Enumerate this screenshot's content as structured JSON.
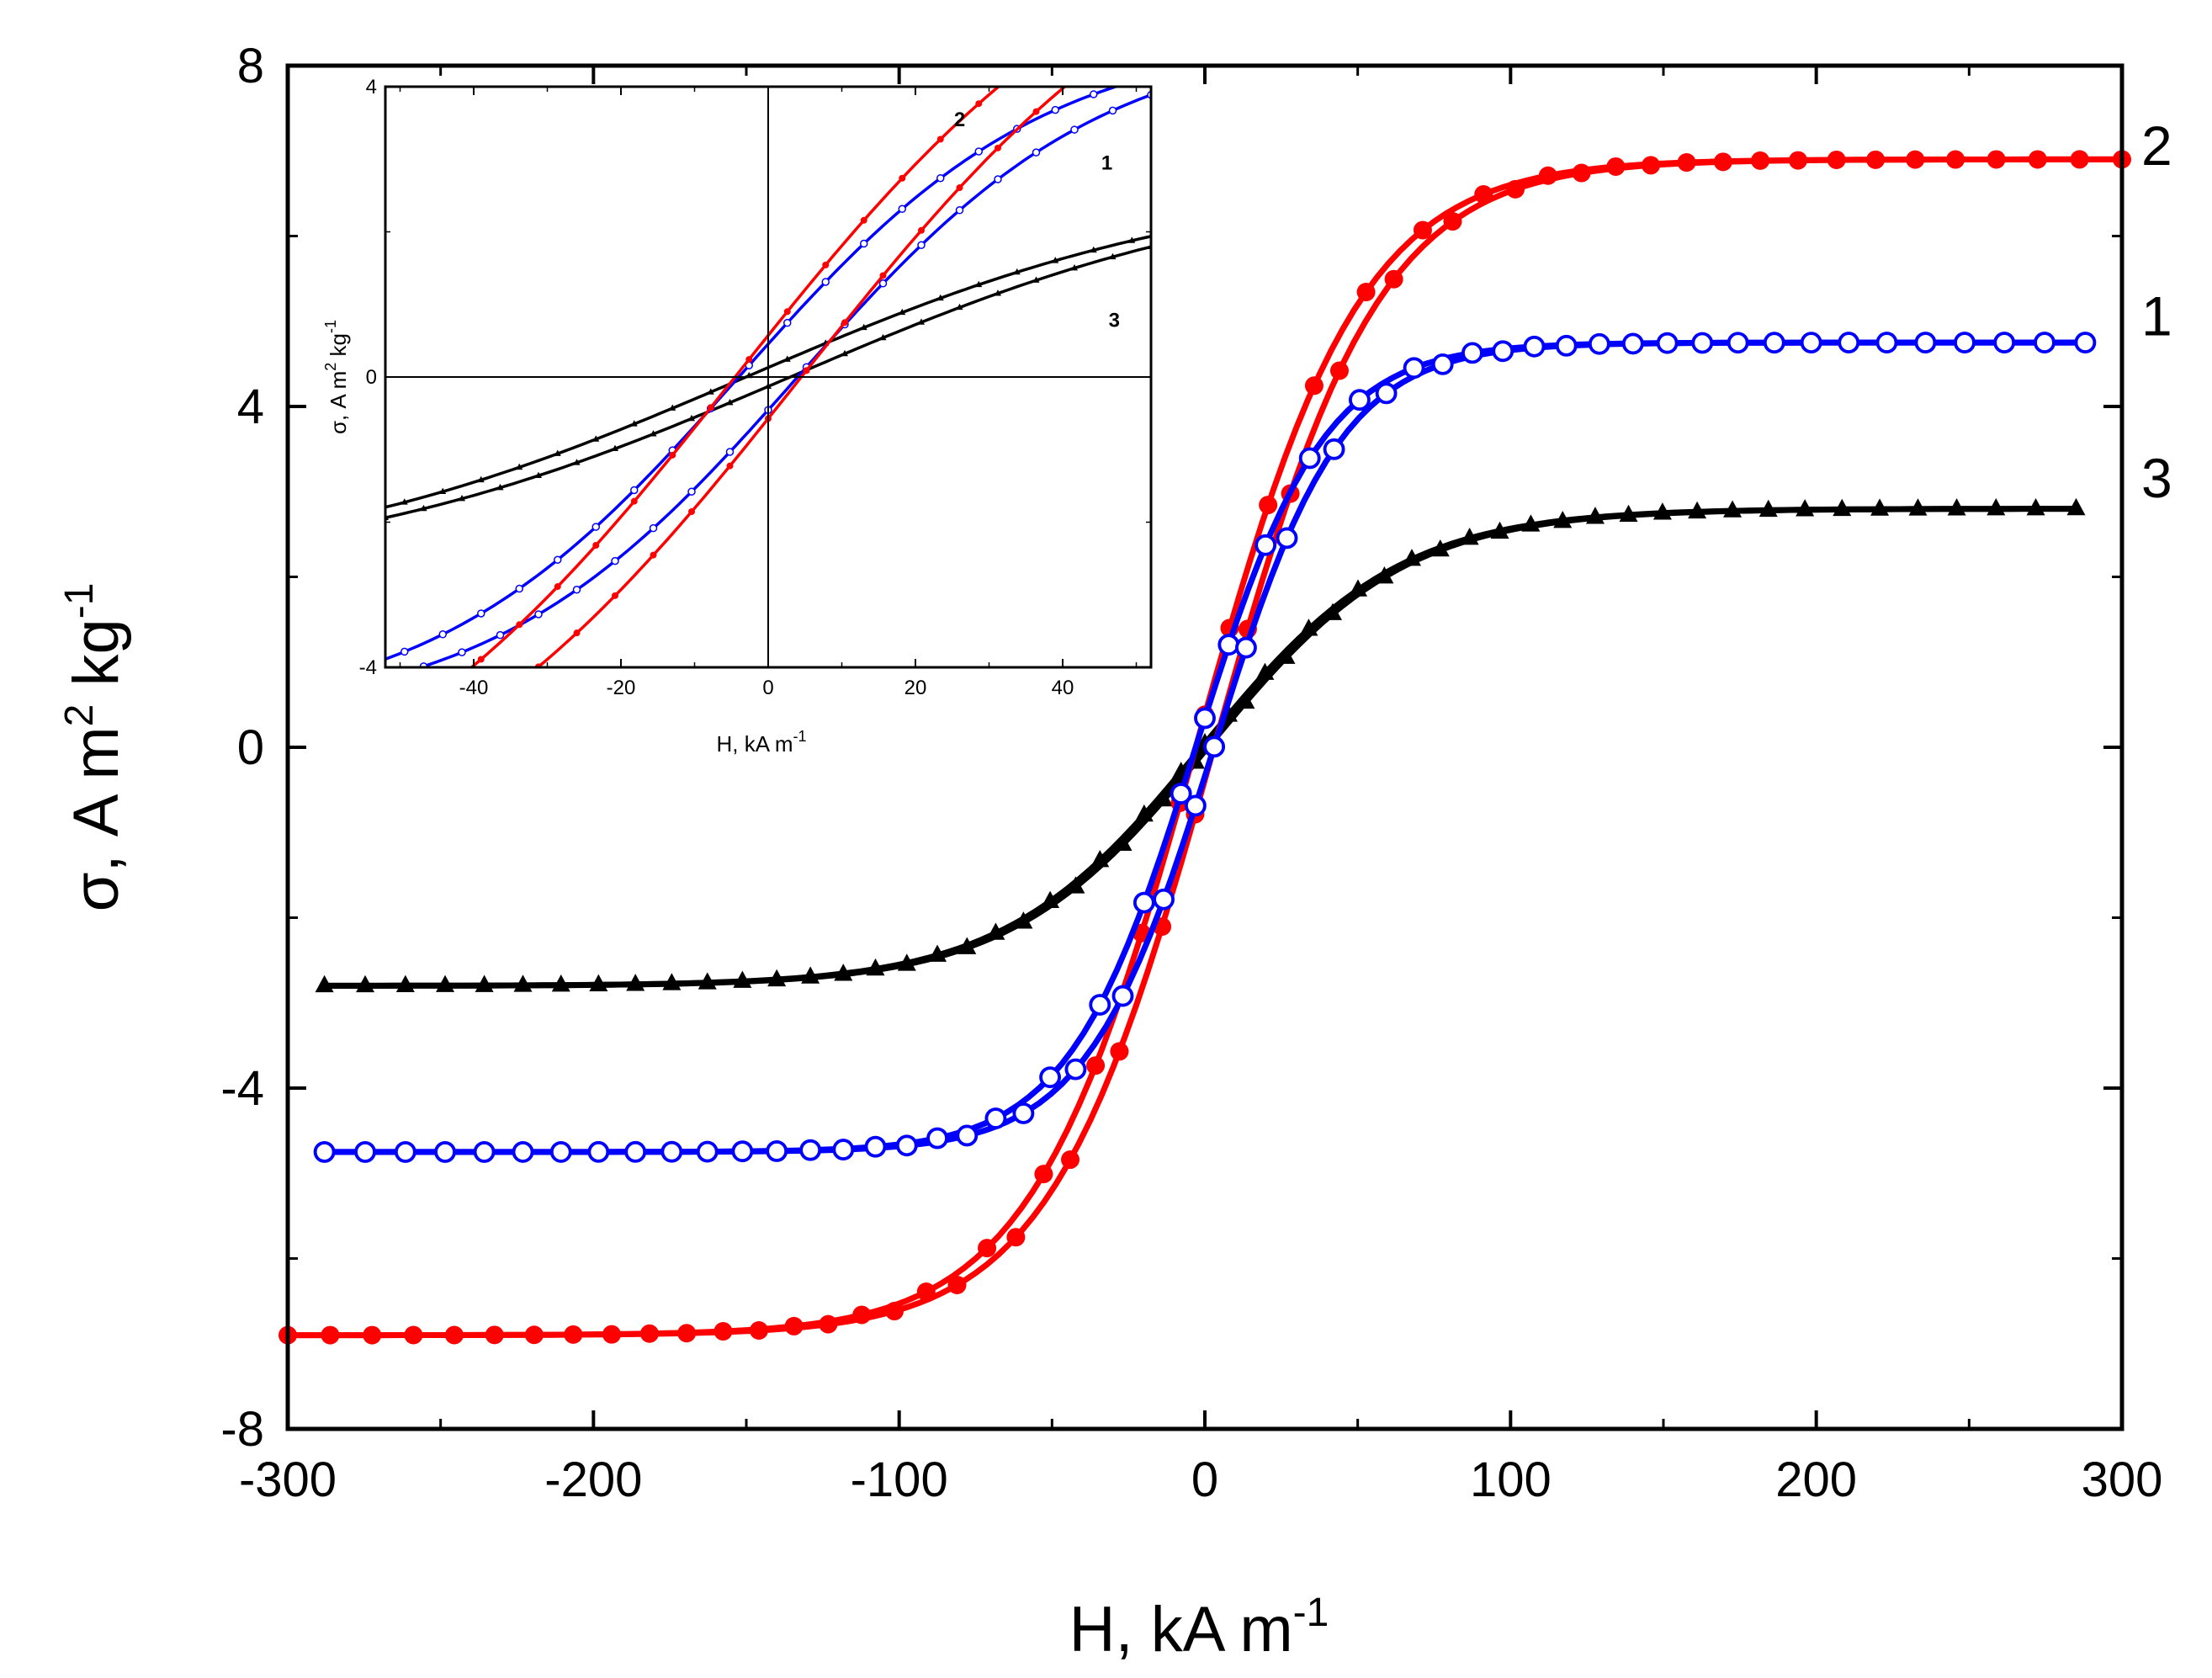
{
  "chart_data": [
    {
      "id": "main",
      "type": "line",
      "xlabel": "H, kA m",
      "xlabel_sup": "-1",
      "ylabel": "σ, A m",
      "ylabel_sup1": "2",
      "ylabel_mid": " kg",
      "ylabel_sup2": "-1",
      "xlim": [
        -300,
        300
      ],
      "ylim": [
        -8,
        8
      ],
      "xticks": [
        {
          "value": -300,
          "label": "-300"
        },
        {
          "value": -200,
          "label": "-200"
        },
        {
          "value": -100,
          "label": "-100"
        },
        {
          "value": 0,
          "label": "0"
        },
        {
          "value": 100,
          "label": "100"
        },
        {
          "value": 200,
          "label": "200"
        },
        {
          "value": 300,
          "label": "300"
        }
      ],
      "yticks": [
        {
          "value": -8,
          "label": "-8"
        },
        {
          "value": -4,
          "label": "-4"
        },
        {
          "value": 0,
          "label": "0"
        },
        {
          "value": 4,
          "label": "4"
        },
        {
          "value": 8,
          "label": "8"
        }
      ],
      "series": [
        {
          "name": "1",
          "label": "1",
          "color": "#0000ff",
          "marker": "open-circle",
          "Ms": 4.75,
          "k": 0.024,
          "hc": 3,
          "h_start": -288,
          "h_end": 288,
          "label_y": 5.05
        },
        {
          "name": "2",
          "label": "2",
          "color": "#ff0000",
          "marker": "filled-circle",
          "Ms": 6.9,
          "k": 0.0185,
          "hc": 3,
          "h_start": -300,
          "h_end": 300,
          "label_y": 7.05
        },
        {
          "name": "3",
          "label": "3",
          "color": "#000000",
          "marker": "filled-triangle",
          "Ms": 2.8,
          "k": 0.0155,
          "hc": 1,
          "h_start": -288,
          "h_end": 285,
          "label_y": 3.15
        }
      ]
    },
    {
      "id": "inset",
      "type": "line",
      "xlabel": "H, kA m",
      "xlabel_sup": "-1",
      "ylabel": "σ, A m",
      "ylabel_sup1": "2",
      "ylabel_mid": " kg",
      "ylabel_sup2": "-1",
      "xlim": [
        -52,
        52
      ],
      "ylim": [
        -4,
        4
      ],
      "xticks": [
        {
          "value": -40,
          "label": "-40"
        },
        {
          "value": -20,
          "label": "-20"
        },
        {
          "value": 0,
          "label": "0"
        },
        {
          "value": 20,
          "label": "20"
        },
        {
          "value": 40,
          "label": "40"
        }
      ],
      "yticks": [
        {
          "value": -4,
          "label": "-4"
        },
        {
          "value": 0,
          "label": "0"
        },
        {
          "value": 4,
          "label": "4"
        }
      ],
      "series": [
        {
          "name": "1",
          "label": "1",
          "color": "#0000ff",
          "marker": "open-circle",
          "Ms": 4.75,
          "k": 0.024,
          "hc": 4,
          "label_x": 46,
          "label_y": 2.95
        },
        {
          "name": "2",
          "label": "2",
          "color": "#ff0000",
          "marker": "filled-circle",
          "Ms": 6.9,
          "k": 0.0185,
          "hc": 4.5,
          "label_x": 26,
          "label_y": 3.55
        },
        {
          "name": "3",
          "label": "3",
          "color": "#000000",
          "marker": "filled-triangle",
          "Ms": 2.8,
          "k": 0.0155,
          "hc": 3,
          "label_x": 47,
          "label_y": 0.78
        }
      ]
    }
  ]
}
